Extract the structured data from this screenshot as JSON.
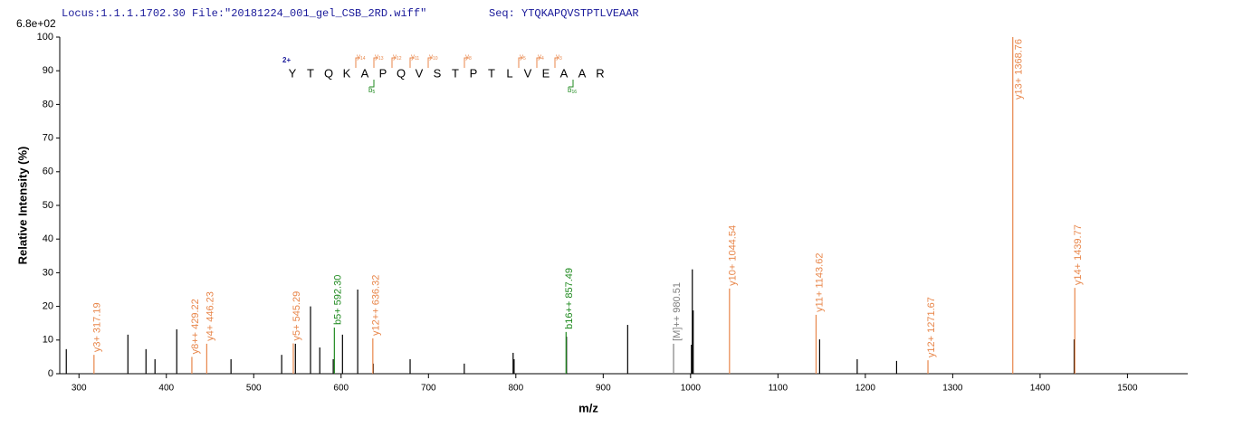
{
  "header": {
    "locus": "Locus:1.1.1.1702.30 File:\"20181224_001_gel_CSB_2RD.wiff\"",
    "seq": "Seq: YTQKAPQVSTPTLVEAAR"
  },
  "sequence": {
    "charge": "2+",
    "residues": [
      "Y",
      "T",
      "Q",
      "K",
      "A",
      "P",
      "Q",
      "V",
      "S",
      "T",
      "P",
      "T",
      "L",
      "V",
      "E",
      "A",
      "A",
      "R"
    ],
    "y_prefix": "y",
    "b_prefix": "b",
    "y_ions": [
      14,
      13,
      12,
      11,
      10,
      8,
      5,
      4,
      3
    ],
    "b_ions": [
      5,
      16
    ]
  },
  "chart_data": {
    "type": "spectrum",
    "y_top_label": "6.8e+02",
    "xlabel": "m/z",
    "ylabel": "Relative   Intensity (%)",
    "xlim": [
      278,
      1569
    ],
    "ylim": [
      0,
      100
    ],
    "xticks": [
      300,
      400,
      500,
      600,
      700,
      800,
      900,
      1000,
      1100,
      1200,
      1300,
      1400,
      1500
    ],
    "yticks": [
      0,
      10,
      20,
      30,
      40,
      50,
      60,
      70,
      80,
      90,
      100
    ],
    "peaks": {
      "color": "#000000",
      "x": [
        285.5,
        356,
        376.7,
        387,
        411.9,
        474,
        532,
        547.7,
        565,
        575.6,
        591,
        601.6,
        619,
        636.8,
        679,
        741,
        796.9,
        798,
        858,
        928,
        1001,
        1002,
        1003,
        1147.7,
        1190.7,
        1235.8,
        1439
      ],
      "values": [
        7.3,
        11.6,
        7.3,
        4.3,
        13.2,
        4.3,
        5.6,
        8.9,
        20,
        7.8,
        4.3,
        11.6,
        25,
        3,
        4.3,
        3,
        6.2,
        4.3,
        11,
        14.5,
        8.6,
        31,
        18.8,
        10.2,
        4.3,
        3.8,
        10.2
      ]
    },
    "annotated": {
      "x": [
        317.19,
        429.22,
        446.23,
        545.29,
        592.3,
        636.32,
        857.49,
        980.51,
        1044.54,
        1143.62,
        1271.67,
        1368.76,
        1439.77
      ],
      "values": [
        5.6,
        5,
        8.9,
        9,
        13.7,
        10.5,
        12.4,
        8.9,
        25.3,
        17.5,
        4,
        100,
        25.5
      ],
      "labels": [
        "y3+ 317.19",
        "y8++ 429.22",
        "y4+ 446.23",
        "y5+ 545.29",
        "b5+ 592.30",
        "y12++ 636.32",
        "b16++ 857.49",
        "[M]++ 980.51",
        "y10+ 1044.54",
        "y11+ 1143.62",
        "y12+ 1271.67",
        "y13+ 1368.76",
        "y14+ 1439.77"
      ],
      "colors": [
        "#e8864a",
        "#e8864a",
        "#e8864a",
        "#e8864a",
        "#1f8a1f",
        "#e8864a",
        "#1f8a1f",
        "#808080",
        "#e8864a",
        "#e8864a",
        "#e8864a",
        "#e8864a",
        "#e8864a"
      ]
    }
  }
}
